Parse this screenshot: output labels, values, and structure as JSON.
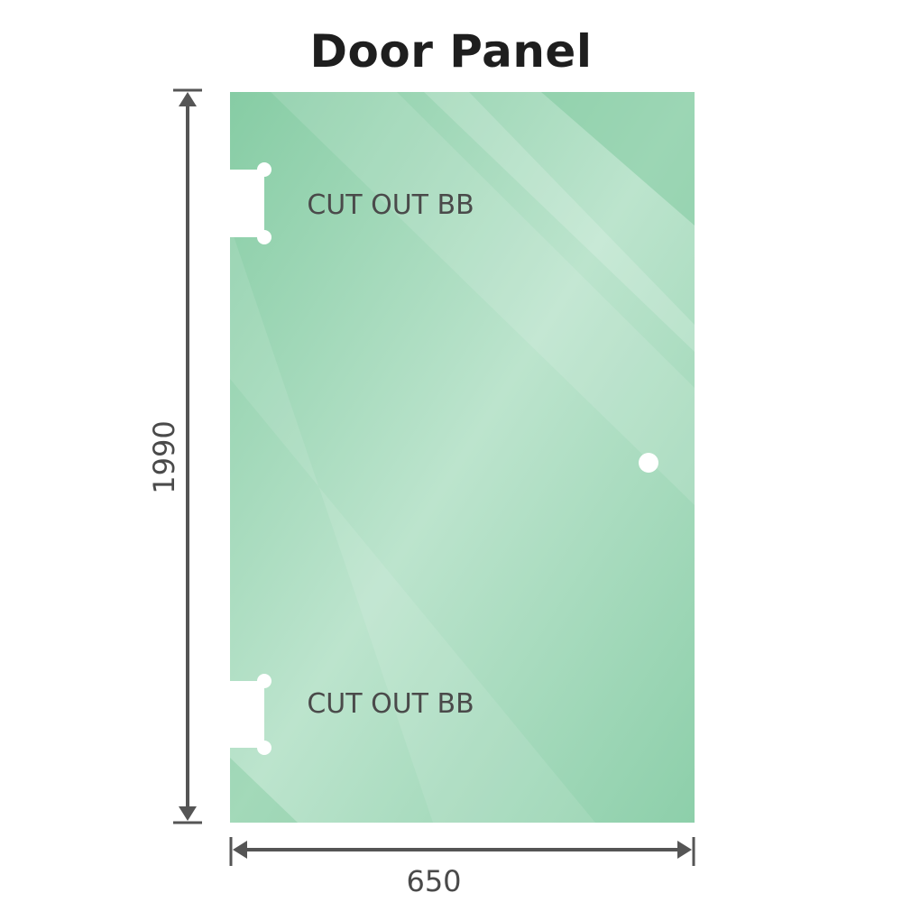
{
  "title": "Door Panel",
  "dimensions": {
    "height": "1990",
    "width": "650"
  },
  "cutouts": [
    {
      "label": "CUT OUT BB"
    },
    {
      "label": "CUT OUT BB"
    }
  ],
  "colors": {
    "glass": "#8fcfab",
    "glass_light": "#bde5cf",
    "dimension_line": "#555555",
    "text": "#4a4a4a"
  }
}
